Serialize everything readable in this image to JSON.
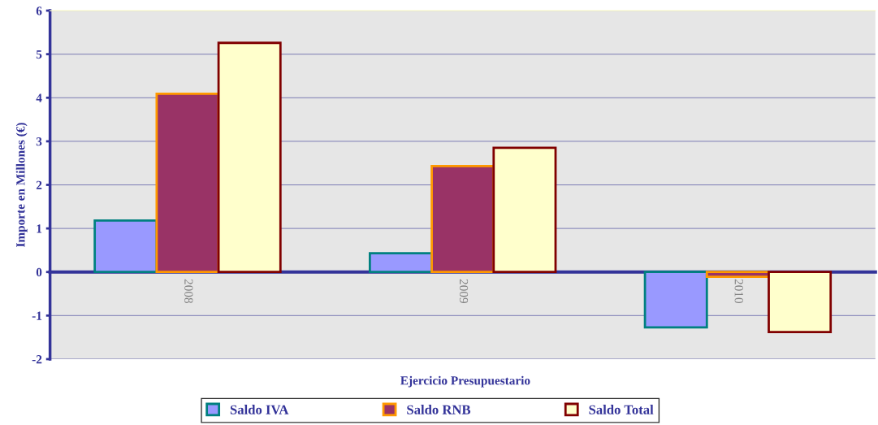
{
  "chart_data": {
    "type": "bar",
    "xlabel": "Ejercicio Presupuestario",
    "ylabel": "Importe en Millones (€)",
    "categories": [
      "2008",
      "2009",
      "2010"
    ],
    "series": [
      {
        "name": "Saldo IVA",
        "color": "#9999ff",
        "values": [
          1.18,
          0.43,
          -1.27
        ]
      },
      {
        "name": "Saldo RNB",
        "color": "#993366",
        "values": [
          4.09,
          2.43,
          -0.11
        ]
      },
      {
        "name": "Saldo Total",
        "color": "#ffffcc",
        "values": [
          5.26,
          2.85,
          -1.38
        ]
      }
    ],
    "ylim": [
      -2,
      6
    ],
    "yticks": [
      -2,
      -1,
      0,
      1,
      2,
      3,
      4,
      5,
      6
    ],
    "grid": "y",
    "legend": "bottom"
  }
}
